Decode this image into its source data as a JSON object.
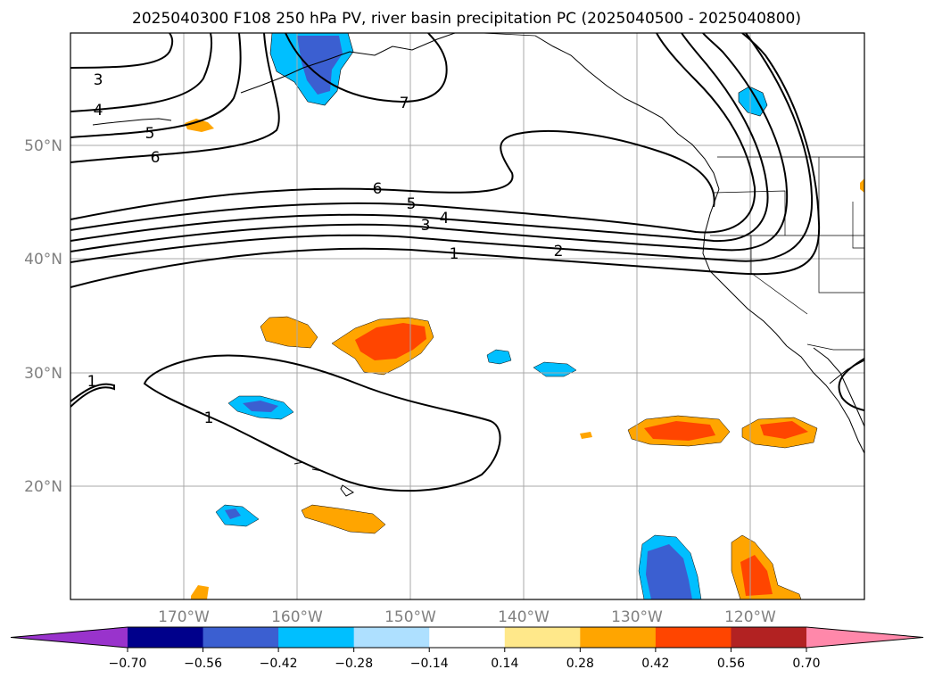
{
  "title": "2025040300 F108 250 hPa PV, river basin precipitation PC (2025040500 - 2025040800)",
  "map": {
    "lon_range": [
      -180,
      -110
    ],
    "lat_range": [
      10,
      60
    ],
    "gridlines": true
  },
  "axes": {
    "lat_labels": [
      "50°N",
      "40°N",
      "30°N",
      "20°N"
    ],
    "lon_labels": [
      "170°W",
      "160°W",
      "150°W",
      "140°W",
      "130°W",
      "120°W"
    ]
  },
  "contour_labels": [
    "3",
    "4",
    "5",
    "6",
    "7",
    "6",
    "5",
    "4",
    "3",
    "1",
    "2",
    "1",
    "1"
  ],
  "colorbar": {
    "ticks": [
      "−0.70",
      "−0.56",
      "−0.42",
      "−0.28",
      "−0.14",
      "0.14",
      "0.28",
      "0.42",
      "0.56",
      "0.70"
    ],
    "colors": [
      "#9933cc",
      "#00008b",
      "#3b5fd1",
      "#00bfff",
      "#aee0ff",
      "#ffffff",
      "#ffe88a",
      "#ffa500",
      "#ff4500",
      "#b22222",
      "#ff88aa"
    ]
  },
  "colors": {
    "neg_strong": "#3b5fd1",
    "neg": "#00bfff",
    "pos": "#ffa500",
    "pos_strong": "#ff4500",
    "pos_extreme": "#b22222"
  }
}
